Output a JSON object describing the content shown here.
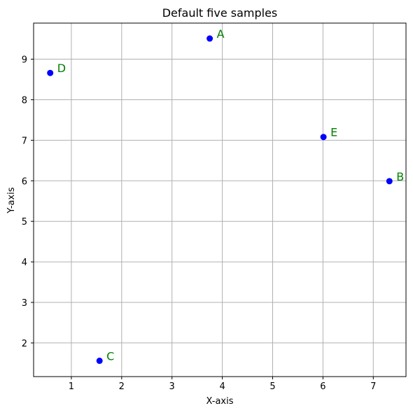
{
  "chart_data": {
    "type": "scatter",
    "title": "Default five samples",
    "xlabel": "X-axis",
    "ylabel": "Y-axis",
    "xlim": [
      0.25,
      7.65
    ],
    "ylim": [
      1.17,
      9.89
    ],
    "xticks": [
      1,
      2,
      3,
      4,
      5,
      6,
      7
    ],
    "yticks": [
      2,
      3,
      4,
      5,
      6,
      7,
      8,
      9
    ],
    "grid": true,
    "marker_color": "#0000ff",
    "label_color": "#008000",
    "grid_color": "#b0b0b0",
    "points": [
      {
        "label": "A",
        "x": 3.75,
        "y": 9.51
      },
      {
        "label": "B",
        "x": 7.32,
        "y": 5.99
      },
      {
        "label": "C",
        "x": 1.56,
        "y": 1.56
      },
      {
        "label": "D",
        "x": 0.58,
        "y": 8.66
      },
      {
        "label": "E",
        "x": 6.01,
        "y": 7.08
      }
    ]
  }
}
